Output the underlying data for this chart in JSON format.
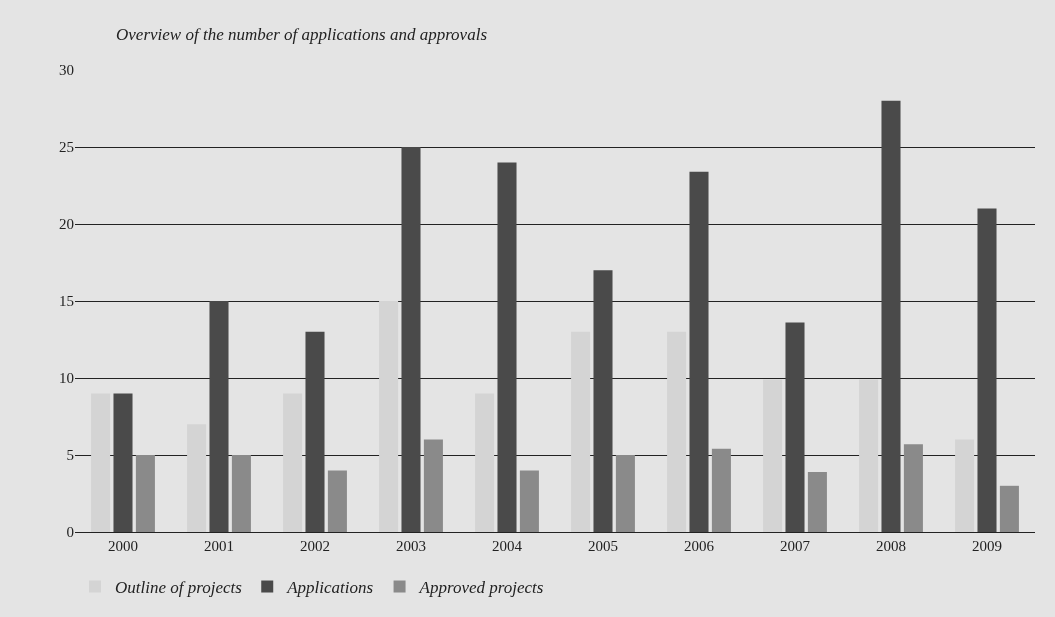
{
  "chart_data": {
    "type": "bar",
    "title": "Overview of the number of applications and approvals",
    "categories": [
      "2000",
      "2001",
      "2002",
      "2003",
      "2004",
      "2005",
      "2006",
      "2007",
      "2008",
      "2009"
    ],
    "series": [
      {
        "name": "Outline of projects",
        "color": "#d4d4d4",
        "values": [
          9,
          7,
          9,
          15,
          9,
          13,
          13,
          9.9,
          9.9,
          6
        ]
      },
      {
        "name": "Applications",
        "color": "#4a4a4a",
        "values": [
          9,
          15,
          13,
          25,
          24,
          17,
          23.4,
          13.6,
          28,
          21
        ]
      },
      {
        "name": "Approved projects",
        "color": "#8a8a8a",
        "values": [
          5,
          5,
          4,
          6,
          4,
          5,
          5.4,
          3.9,
          5.7,
          3
        ]
      }
    ],
    "ylim": [
      0,
      30
    ],
    "yticks": [
      0,
      5,
      10,
      15,
      20,
      25,
      30
    ],
    "grid": "y",
    "legend": "bottom left"
  }
}
